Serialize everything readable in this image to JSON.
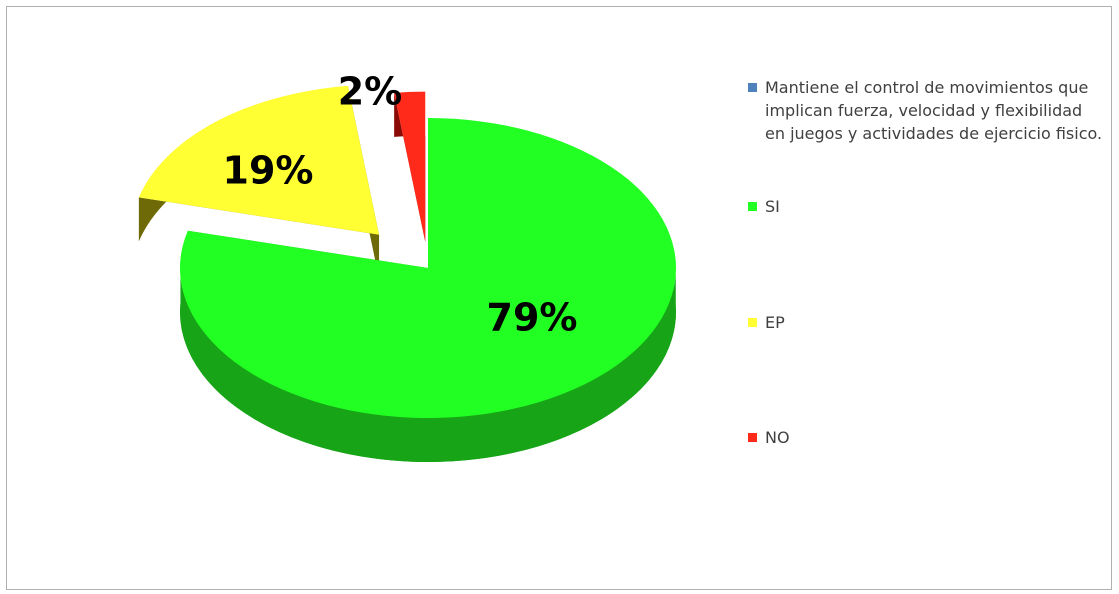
{
  "chart_data": {
    "type": "pie",
    "title": "",
    "exploded": true,
    "style": "3d",
    "legend_position": "right",
    "slices": [
      {
        "label": "SI",
        "value": 79,
        "display": "79%",
        "color": "#22ff22",
        "side_color": "#17a517"
      },
      {
        "label": "EP",
        "value": 19,
        "display": "19%",
        "color": "#ffff33",
        "side_color": "#6e6a08"
      },
      {
        "label": "NO",
        "value": 2,
        "display": "2%",
        "color": "#ff2a1a",
        "side_color": "#8a0a05"
      }
    ],
    "legend": [
      {
        "label": "Mantiene el control de movimientos que implican fuerza, velocidad y flexibilidad en juegos y actividades de ejercicio fisico.",
        "color": "#4f81bd"
      },
      {
        "label": "SI",
        "color": "#22ff22"
      },
      {
        "label": "EP",
        "color": "#ffff33"
      },
      {
        "label": "NO",
        "color": "#ff2a1a"
      }
    ]
  }
}
